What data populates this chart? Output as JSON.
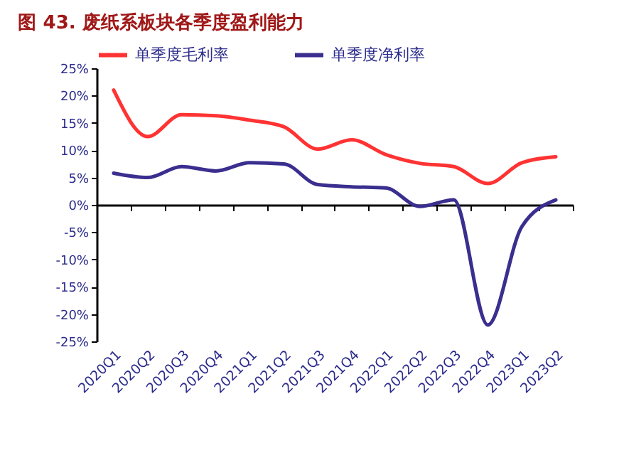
{
  "chart_data": {
    "type": "line",
    "title": "图 43. 废纸系板块各季度盈利能力",
    "categories": [
      "2020Q1",
      "2020Q2",
      "2020Q3",
      "2020Q4",
      "2021Q1",
      "2021Q2",
      "2021Q3",
      "2021Q4",
      "2022Q1",
      "2022Q2",
      "2022Q3",
      "2022Q4",
      "2023Q1",
      "2023Q2"
    ],
    "series": [
      {
        "name": "单季度毛利率",
        "color": "#ff3333",
        "values": [
          21,
          12.5,
          16.5,
          16.3,
          15.5,
          14.3,
          10.2,
          11.9,
          9.2,
          7.6,
          7,
          3.9,
          7.7,
          8.8
        ]
      },
      {
        "name": "单季度净利率",
        "color": "#3a2f8f",
        "values": [
          5.8,
          5,
          7,
          6.2,
          7.7,
          7.5,
          3.7,
          3.3,
          3.1,
          -0.3,
          0.9,
          -22,
          -4,
          0.9
        ]
      }
    ],
    "ylim": [
      -25,
      25
    ],
    "yticks": [
      {
        "value": -25,
        "label": "-25%"
      },
      {
        "value": -20,
        "label": "-20%"
      },
      {
        "value": -15,
        "label": "-15%"
      },
      {
        "value": -10,
        "label": "-10%"
      },
      {
        "value": -5,
        "label": "-5%"
      },
      {
        "value": 0,
        "label": "0%"
      },
      {
        "value": 5,
        "label": "5%"
      },
      {
        "value": 10,
        "label": "10%"
      },
      {
        "value": 15,
        "label": "15%"
      },
      {
        "value": 20,
        "label": "20%"
      },
      {
        "value": 25,
        "label": "25%"
      }
    ],
    "legend": "top",
    "marker": "none",
    "line_style": "solid"
  }
}
